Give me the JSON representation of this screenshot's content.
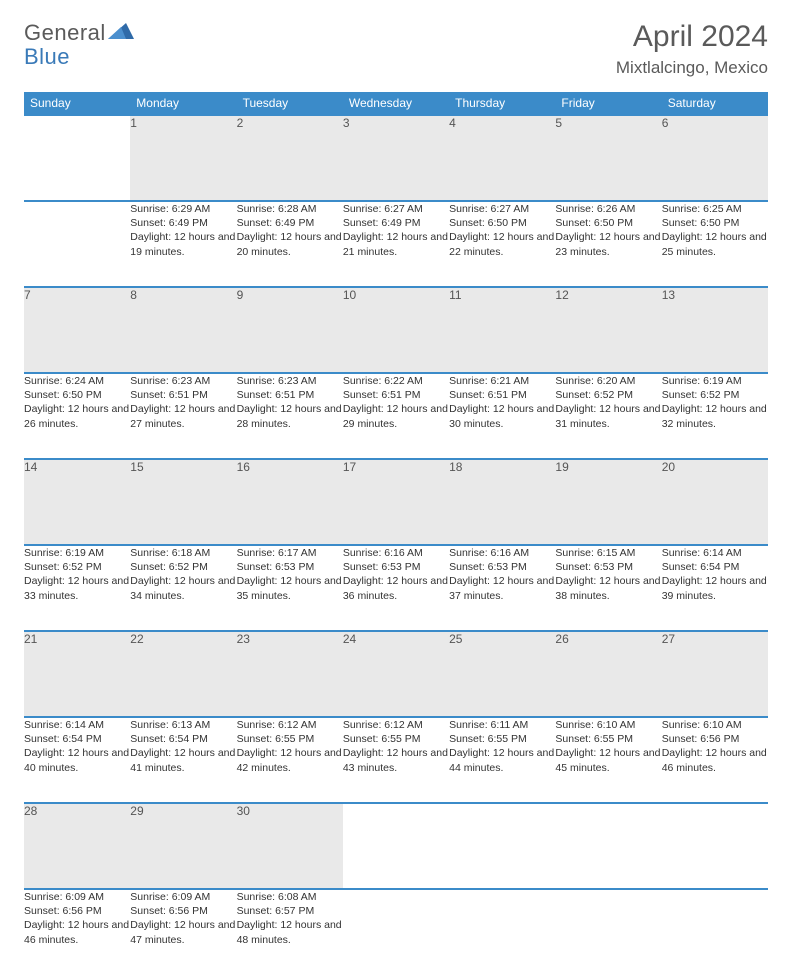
{
  "logo": {
    "brand1": "General",
    "brand2": "Blue"
  },
  "header": {
    "title": "April 2024",
    "location": "Mixtlalcingo, Mexico"
  },
  "colors": {
    "accent": "#3b8bc9",
    "daybg": "#e9e9e9",
    "text": "#333333"
  },
  "dayNames": [
    "Sunday",
    "Monday",
    "Tuesday",
    "Wednesday",
    "Thursday",
    "Friday",
    "Saturday"
  ],
  "weeks": [
    {
      "nums": [
        "",
        "1",
        "2",
        "3",
        "4",
        "5",
        "6"
      ],
      "cells": [
        "",
        "Sunrise: 6:29 AM\nSunset: 6:49 PM\nDaylight: 12 hours and 19 minutes.",
        "Sunrise: 6:28 AM\nSunset: 6:49 PM\nDaylight: 12 hours and 20 minutes.",
        "Sunrise: 6:27 AM\nSunset: 6:49 PM\nDaylight: 12 hours and 21 minutes.",
        "Sunrise: 6:27 AM\nSunset: 6:50 PM\nDaylight: 12 hours and 22 minutes.",
        "Sunrise: 6:26 AM\nSunset: 6:50 PM\nDaylight: 12 hours and 23 minutes.",
        "Sunrise: 6:25 AM\nSunset: 6:50 PM\nDaylight: 12 hours and 25 minutes."
      ]
    },
    {
      "nums": [
        "7",
        "8",
        "9",
        "10",
        "11",
        "12",
        "13"
      ],
      "cells": [
        "Sunrise: 6:24 AM\nSunset: 6:50 PM\nDaylight: 12 hours and 26 minutes.",
        "Sunrise: 6:23 AM\nSunset: 6:51 PM\nDaylight: 12 hours and 27 minutes.",
        "Sunrise: 6:23 AM\nSunset: 6:51 PM\nDaylight: 12 hours and 28 minutes.",
        "Sunrise: 6:22 AM\nSunset: 6:51 PM\nDaylight: 12 hours and 29 minutes.",
        "Sunrise: 6:21 AM\nSunset: 6:51 PM\nDaylight: 12 hours and 30 minutes.",
        "Sunrise: 6:20 AM\nSunset: 6:52 PM\nDaylight: 12 hours and 31 minutes.",
        "Sunrise: 6:19 AM\nSunset: 6:52 PM\nDaylight: 12 hours and 32 minutes."
      ]
    },
    {
      "nums": [
        "14",
        "15",
        "16",
        "17",
        "18",
        "19",
        "20"
      ],
      "cells": [
        "Sunrise: 6:19 AM\nSunset: 6:52 PM\nDaylight: 12 hours and 33 minutes.",
        "Sunrise: 6:18 AM\nSunset: 6:52 PM\nDaylight: 12 hours and 34 minutes.",
        "Sunrise: 6:17 AM\nSunset: 6:53 PM\nDaylight: 12 hours and 35 minutes.",
        "Sunrise: 6:16 AM\nSunset: 6:53 PM\nDaylight: 12 hours and 36 minutes.",
        "Sunrise: 6:16 AM\nSunset: 6:53 PM\nDaylight: 12 hours and 37 minutes.",
        "Sunrise: 6:15 AM\nSunset: 6:53 PM\nDaylight: 12 hours and 38 minutes.",
        "Sunrise: 6:14 AM\nSunset: 6:54 PM\nDaylight: 12 hours and 39 minutes."
      ]
    },
    {
      "nums": [
        "21",
        "22",
        "23",
        "24",
        "25",
        "26",
        "27"
      ],
      "cells": [
        "Sunrise: 6:14 AM\nSunset: 6:54 PM\nDaylight: 12 hours and 40 minutes.",
        "Sunrise: 6:13 AM\nSunset: 6:54 PM\nDaylight: 12 hours and 41 minutes.",
        "Sunrise: 6:12 AM\nSunset: 6:55 PM\nDaylight: 12 hours and 42 minutes.",
        "Sunrise: 6:12 AM\nSunset: 6:55 PM\nDaylight: 12 hours and 43 minutes.",
        "Sunrise: 6:11 AM\nSunset: 6:55 PM\nDaylight: 12 hours and 44 minutes.",
        "Sunrise: 6:10 AM\nSunset: 6:55 PM\nDaylight: 12 hours and 45 minutes.",
        "Sunrise: 6:10 AM\nSunset: 6:56 PM\nDaylight: 12 hours and 46 minutes."
      ]
    },
    {
      "nums": [
        "28",
        "29",
        "30",
        "",
        "",
        "",
        ""
      ],
      "cells": [
        "Sunrise: 6:09 AM\nSunset: 6:56 PM\nDaylight: 12 hours and 46 minutes.",
        "Sunrise: 6:09 AM\nSunset: 6:56 PM\nDaylight: 12 hours and 47 minutes.",
        "Sunrise: 6:08 AM\nSunset: 6:57 PM\nDaylight: 12 hours and 48 minutes.",
        "",
        "",
        "",
        ""
      ]
    }
  ]
}
